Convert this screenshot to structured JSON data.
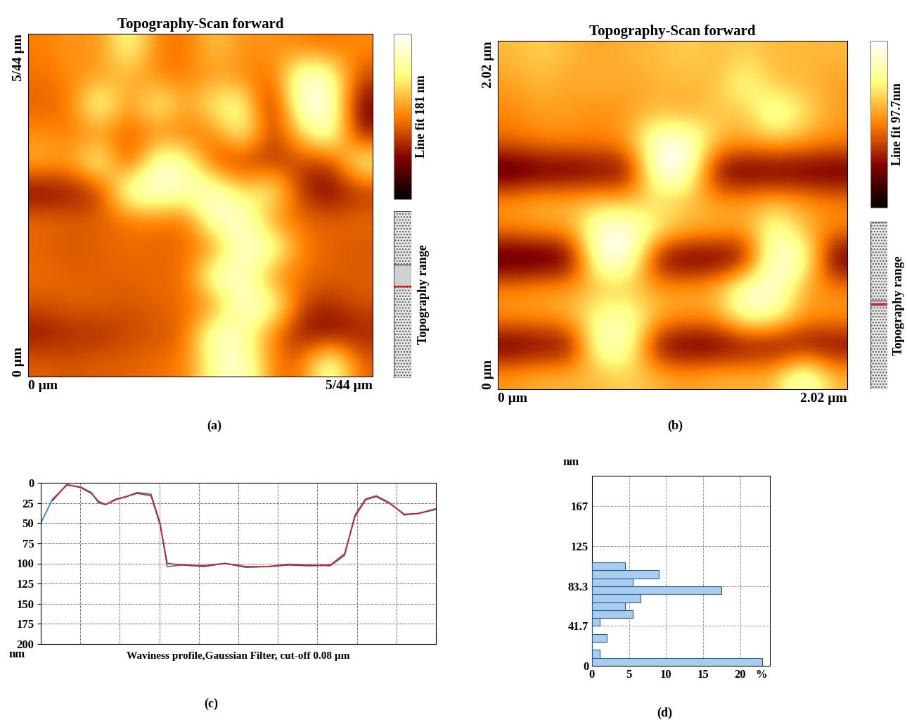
{
  "chart_data": [
    {
      "type": "heatmap",
      "panel_label": "(a)",
      "title": "Topography-Scan forward",
      "xlim": [
        0,
        5.44
      ],
      "xticks": [
        {
          "value": 0,
          "label": "0 µm"
        },
        {
          "value": 5.44,
          "label": "5/44 µm"
        }
      ],
      "ylim": [
        0,
        5.44
      ],
      "yticks": [
        {
          "value": 0,
          "label": "0 µm"
        },
        {
          "value": 5.44,
          "label": "5/44 µm"
        }
      ],
      "cells": [
        [
          90,
          100,
          95,
          150,
          90,
          85,
          120,
          95,
          100,
          90,
          85,
          95
        ],
        [
          85,
          95,
          100,
          110,
          90,
          90,
          100,
          95,
          80,
          170,
          160,
          70
        ],
        [
          80,
          85,
          165,
          90,
          150,
          100,
          140,
          150,
          40,
          175,
          175,
          40
        ],
        [
          95,
          90,
          90,
          80,
          90,
          85,
          90,
          150,
          60,
          120,
          170,
          50
        ],
        [
          110,
          100,
          160,
          60,
          165,
          155,
          70,
          60,
          60,
          70,
          60,
          150
        ],
        [
          40,
          50,
          60,
          170,
          175,
          160,
          170,
          120,
          150,
          60,
          40,
          60
        ],
        [
          85,
          80,
          80,
          85,
          90,
          80,
          170,
          170,
          90,
          85,
          80,
          85
        ],
        [
          80,
          75,
          80,
          85,
          80,
          85,
          90,
          170,
          165,
          90,
          80,
          75
        ],
        [
          85,
          80,
          80,
          80,
          85,
          80,
          170,
          165,
          90,
          85,
          80,
          80
        ],
        [
          75,
          80,
          80,
          75,
          80,
          85,
          90,
          170,
          160,
          70,
          60,
          75
        ],
        [
          50,
          60,
          60,
          70,
          75,
          80,
          170,
          150,
          90,
          50,
          40,
          55
        ],
        [
          80,
          75,
          80,
          80,
          85,
          90,
          150,
          170,
          90,
          80,
          170,
          80
        ]
      ],
      "colorbar": {
        "label": "Line fit 181 nm",
        "range": [
          0,
          181
        ],
        "ticks": []
      },
      "range_indicator": "Topography range"
    },
    {
      "type": "heatmap",
      "panel_label": "(b)",
      "title": "Topography-Scan forward",
      "xlim": [
        0,
        2.02
      ],
      "xticks": [
        {
          "value": 0,
          "label": "0 µm"
        },
        {
          "value": 2.02,
          "label": "2.02 µm"
        }
      ],
      "ylim": [
        0,
        2.02
      ],
      "yticks": [
        {
          "value": 0,
          "label": "0 µm"
        },
        {
          "value": 2.02,
          "label": "2.02 µm"
        }
      ],
      "cells": [
        [
          60,
          65,
          60,
          55,
          60,
          60,
          65,
          60,
          65,
          60,
          60,
          60
        ],
        [
          55,
          60,
          55,
          60,
          55,
          60,
          60,
          60,
          80,
          60,
          60,
          55
        ],
        [
          50,
          55,
          55,
          50,
          55,
          60,
          55,
          65,
          60,
          90,
          70,
          55
        ],
        [
          45,
          50,
          50,
          50,
          55,
          95,
          97,
          60,
          55,
          60,
          55,
          50
        ],
        [
          10,
          15,
          15,
          20,
          20,
          97,
          95,
          20,
          15,
          15,
          15,
          15
        ],
        [
          55,
          60,
          60,
          60,
          60,
          65,
          60,
          55,
          55,
          60,
          55,
          50
        ],
        [
          50,
          55,
          55,
          95,
          95,
          75,
          60,
          60,
          55,
          85,
          60,
          50
        ],
        [
          10,
          10,
          15,
          95,
          97,
          20,
          15,
          15,
          20,
          95,
          90,
          15
        ],
        [
          50,
          55,
          55,
          60,
          60,
          55,
          55,
          60,
          90,
          95,
          55,
          50
        ],
        [
          55,
          55,
          60,
          80,
          85,
          60,
          55,
          55,
          85,
          80,
          55,
          55
        ],
        [
          15,
          20,
          20,
          90,
          85,
          20,
          15,
          15,
          20,
          20,
          20,
          20
        ],
        [
          55,
          60,
          60,
          60,
          65,
          60,
          55,
          60,
          60,
          60,
          95,
          60
        ]
      ],
      "colorbar": {
        "label": "Line fit 97.7nm",
        "range": [
          0,
          97.7
        ],
        "ticks": []
      },
      "range_indicator": "Topography range"
    },
    {
      "type": "line",
      "panel_label": "(c)",
      "x_label": "Waviness profile,Gaussian Filter, cut-off 0.08 µm",
      "y_label": "nm",
      "x": [
        0,
        0.3,
        0.66,
        1.01,
        1.28,
        1.46,
        1.64,
        1.9,
        2.17,
        2.44,
        2.79,
        3.02,
        3.2,
        3.59,
        4.13,
        4.66,
        5.2,
        5.73,
        6.26,
        6.8,
        7.33,
        7.69,
        7.95,
        8.22,
        8.49,
        8.84,
        9.2,
        9.56,
        10
      ],
      "series": [
        {
          "color": "#2f7fd0",
          "values": [
            50,
            20,
            3,
            5,
            12,
            25,
            27,
            20,
            17,
            12,
            14,
            50,
            104,
            102,
            104,
            100,
            105,
            104,
            101,
            102,
            103,
            90,
            40,
            20,
            16,
            25,
            40,
            38,
            32
          ]
        },
        {
          "color": "#d02020",
          "values": [
            null,
            22,
            2,
            6,
            13,
            23,
            27,
            21,
            17,
            13,
            16,
            52,
            100,
            102,
            103,
            100,
            104,
            104,
            102,
            103,
            102,
            88,
            42,
            21,
            17,
            26,
            39,
            38,
            33
          ]
        }
      ],
      "xlim": [
        0,
        10
      ],
      "xticks": [
        0,
        1,
        2,
        3,
        4,
        5,
        6,
        7,
        8,
        9,
        10
      ],
      "ylim": [
        200,
        0
      ],
      "yticks": [
        0,
        25,
        50,
        75,
        100,
        125,
        150,
        175,
        200
      ],
      "grid": true,
      "tick_labels": "y"
    },
    {
      "type": "histogram",
      "panel_label": "(d)",
      "orientation": "horizontal",
      "y_label": "nm",
      "x_label": "%",
      "bins": [
        0,
        8.33,
        16.67,
        25,
        33.33,
        41.67,
        50,
        58.33,
        66.67,
        75,
        83.33,
        91.67,
        100,
        108.33
      ],
      "counts": [
        23,
        1,
        0,
        2,
        0,
        1,
        5.5,
        4.5,
        6.5,
        17.5,
        5.5,
        9,
        4.5
      ],
      "color": "#a9cdf0",
      "xlim": [
        0,
        24
      ],
      "xticks": [
        0,
        5,
        10,
        15,
        20
      ],
      "ylim": [
        0,
        199
      ],
      "yticks": [
        0,
        41.7,
        83.3,
        125,
        167
      ],
      "grid": true
    }
  ]
}
